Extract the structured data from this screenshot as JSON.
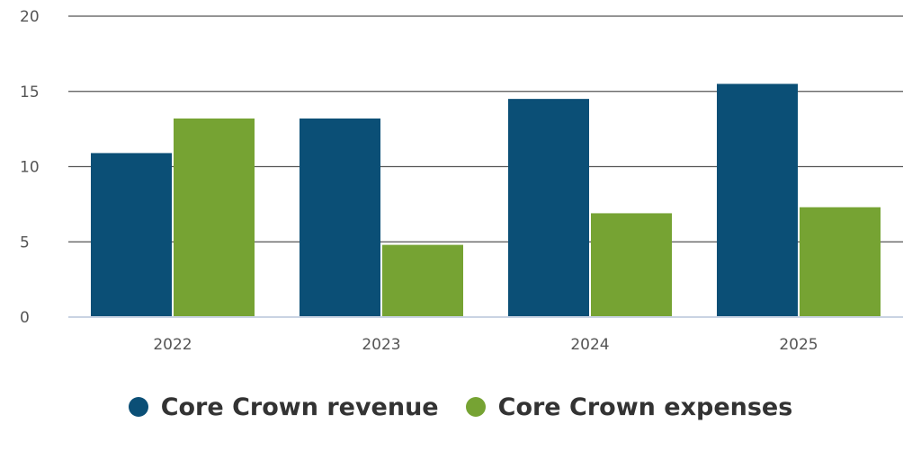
{
  "chart_data": {
    "type": "bar",
    "title": "",
    "xlabel": "",
    "ylabel": "",
    "categories": [
      "2022",
      "2023",
      "2024",
      "2025"
    ],
    "series": [
      {
        "name": "Core Crown revenue",
        "values": [
          10.9,
          13.2,
          14.5,
          15.5
        ],
        "color": "#0b4f76"
      },
      {
        "name": "Core Crown expenses",
        "values": [
          13.2,
          4.8,
          6.9,
          7.3
        ],
        "color": "#76a333"
      }
    ],
    "ylim": [
      0,
      20
    ],
    "yticks": [
      "0",
      "5",
      "10",
      "15",
      "20"
    ],
    "grid": true,
    "legend_position": "bottom"
  }
}
